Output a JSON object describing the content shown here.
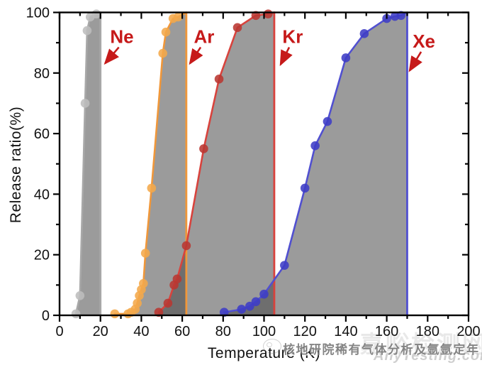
{
  "figure": {
    "xlabel": "Temperature (K)",
    "ylabel": "Release ratio(%)"
  },
  "watermark": {
    "site_cn": "嘉峪检测网",
    "site_en": "AnyTesting.com",
    "caption": "核地研院稀有气体分析及氩氩定年"
  },
  "chart_data": {
    "type": "line",
    "title": "",
    "xlabel": "Temperature (K)",
    "ylabel": "Release ratio(%)",
    "xlim": [
      0,
      200
    ],
    "ylim": [
      0,
      100
    ],
    "x_major_step": 20,
    "x_minor_step": 10,
    "y_major_step": 20,
    "y_minor_step": 10,
    "grid": false,
    "legend": "none",
    "shade_fill": "rgba(72,72,72,0.55)",
    "annotation_color": "#c61a1a",
    "series": [
      {
        "name": "Ne",
        "line_color": "#a8a8a8",
        "point_color": "#bdbdbd",
        "release_line_K": 20,
        "points": [
          [
            8,
            0.5
          ],
          [
            10,
            6.5
          ],
          [
            12.5,
            70
          ],
          [
            13.5,
            94
          ],
          [
            15,
            98.5
          ],
          [
            18,
            99.5
          ]
        ]
      },
      {
        "name": "Ar",
        "line_color": "#f0973a",
        "point_color": "#f4a84a",
        "release_line_K": 62,
        "points": [
          [
            27,
            0.5
          ],
          [
            33.5,
            0.5
          ],
          [
            35,
            1
          ],
          [
            37,
            2
          ],
          [
            38,
            4
          ],
          [
            39,
            6.5
          ],
          [
            40,
            8.5
          ],
          [
            41,
            10.5
          ],
          [
            42,
            20.5
          ],
          [
            45,
            42
          ],
          [
            50.5,
            86.5
          ],
          [
            52,
            93.5
          ],
          [
            55.5,
            98
          ],
          [
            58,
            98.5
          ]
        ]
      },
      {
        "name": "Kr",
        "line_color": "#d8433d",
        "point_color": "#b93731",
        "release_line_K": 105,
        "points": [
          [
            48.5,
            1
          ],
          [
            53,
            4
          ],
          [
            56,
            10
          ],
          [
            57.5,
            12
          ],
          [
            62,
            23
          ],
          [
            70.5,
            55
          ],
          [
            78,
            78
          ],
          [
            87,
            95
          ],
          [
            96,
            99
          ],
          [
            102,
            99.5
          ]
        ]
      },
      {
        "name": "Xe",
        "line_color": "#5150d0",
        "point_color": "#3d3cc6",
        "release_line_K": 170,
        "points": [
          [
            80.5,
            1
          ],
          [
            89,
            2
          ],
          [
            93,
            3
          ],
          [
            96,
            4.5
          ],
          [
            100,
            7
          ],
          [
            110,
            16.5
          ],
          [
            120,
            42
          ],
          [
            125,
            56
          ],
          [
            131,
            64
          ],
          [
            140,
            85
          ],
          [
            149,
            93
          ],
          [
            160,
            98
          ],
          [
            164,
            98.7
          ],
          [
            167,
            99
          ]
        ]
      }
    ],
    "annotations": [
      {
        "label": "Ne",
        "x": 30.5,
        "y": 92,
        "tail": [
          29,
          88.5
        ],
        "tip": [
          22.3,
          83.2
        ]
      },
      {
        "label": "Ar",
        "x": 70.7,
        "y": 92,
        "tail": [
          69,
          88.5
        ],
        "tip": [
          63.8,
          83.2
        ]
      },
      {
        "label": "Kr",
        "x": 114,
        "y": 92,
        "tail": [
          112.3,
          88.5
        ],
        "tip": [
          108.1,
          82.8
        ]
      },
      {
        "label": "Xe",
        "x": 178.2,
        "y": 90.5,
        "tail": [
          176.8,
          87
        ],
        "tip": [
          171.2,
          80.8
        ]
      }
    ]
  }
}
